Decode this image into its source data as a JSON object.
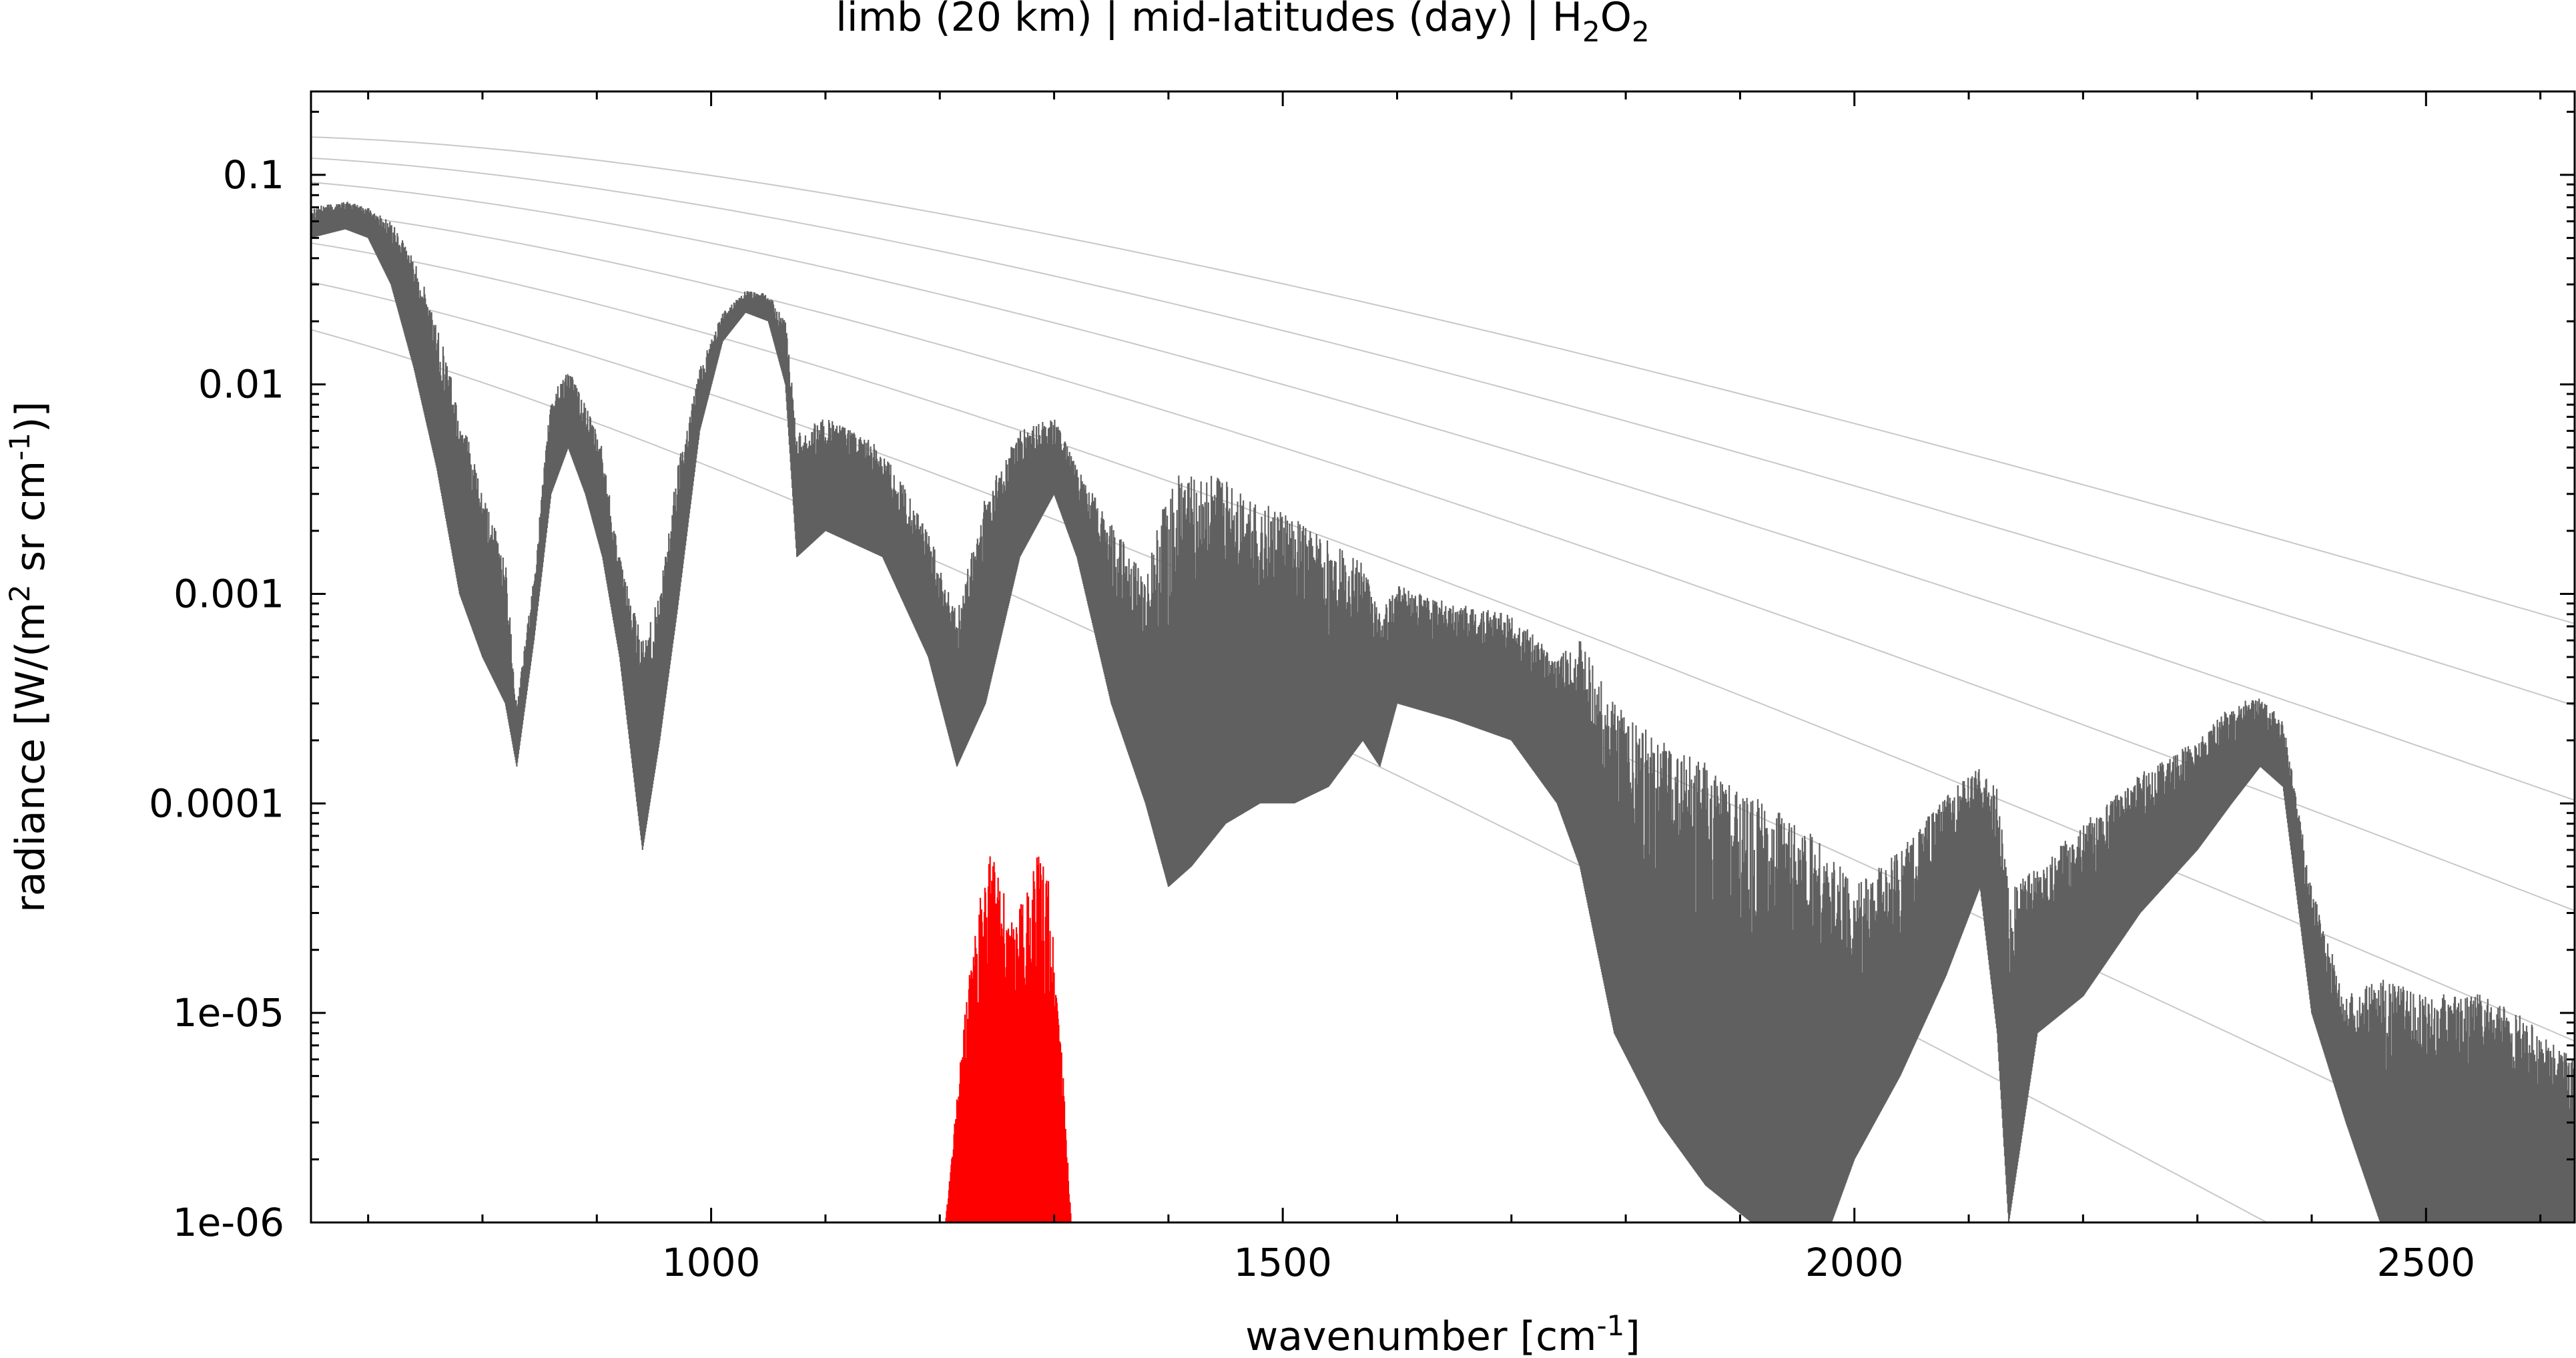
{
  "chart_data": {
    "type": "line",
    "title": {
      "prefix": "limb (20 km) | mid-latitudes (day) | H",
      "sub1": "2",
      "mid": "O",
      "sub2": "2"
    },
    "xlabel": {
      "main": "wavenumber [cm",
      "sup": "-1",
      "end": "]"
    },
    "ylabel": {
      "part1": "radiance [W/(m",
      "sup1": "2",
      "part2": " sr cm",
      "sup2": "-1",
      "part3": ")]"
    },
    "xlim": [
      650,
      2630
    ],
    "ylim": [
      1e-06,
      0.25
    ],
    "yscale": "log",
    "x_ticks": [
      {
        "value": 1000,
        "label": "1000"
      },
      {
        "value": 1500,
        "label": "1500"
      },
      {
        "value": 2000,
        "label": "2000"
      },
      {
        "value": 2500,
        "label": "2500"
      }
    ],
    "y_ticks": [
      {
        "value": 0.1,
        "label": "0.1"
      },
      {
        "value": 0.01,
        "label": "0.01"
      },
      {
        "value": 0.001,
        "label": "0.001"
      },
      {
        "value": 0.0001,
        "label": "0.0001"
      },
      {
        "value": 1e-05,
        "label": "1e-05"
      },
      {
        "value": 1e-06,
        "label": "1e-06"
      }
    ],
    "legend": "none",
    "grid": false,
    "series": [
      {
        "role": "total limb radiance (dark gray envelope)",
        "color": "#606060",
        "x": [
          650,
          680,
          700,
          720,
          740,
          760,
          780,
          800,
          820,
          830,
          845,
          860,
          875,
          890,
          905,
          920,
          940,
          955,
          970,
          990,
          1010,
          1030,
          1050,
          1065,
          1075,
          1100,
          1150,
          1190,
          1215,
          1240,
          1270,
          1300,
          1320,
          1350,
          1380,
          1400,
          1420,
          1450,
          1480,
          1510,
          1540,
          1570,
          1585,
          1600,
          1650,
          1700,
          1740,
          1760,
          1790,
          1830,
          1870,
          1910,
          1950,
          1980,
          2000,
          2040,
          2080,
          2110,
          2125,
          2135,
          2160,
          2200,
          2250,
          2300,
          2330,
          2355,
          2375,
          2400,
          2430,
          2460,
          2500,
          2540,
          2580,
          2630
        ],
        "upper": [
          0.07,
          0.075,
          0.07,
          0.06,
          0.04,
          0.02,
          0.008,
          0.003,
          0.0015,
          0.0003,
          0.0012,
          0.009,
          0.012,
          0.008,
          0.005,
          0.0015,
          0.0006,
          0.001,
          0.004,
          0.012,
          0.022,
          0.028,
          0.027,
          0.02,
          0.006,
          0.007,
          0.005,
          0.002,
          0.0008,
          0.003,
          0.006,
          0.007,
          0.004,
          0.0022,
          0.0012,
          0.0035,
          0.004,
          0.0035,
          0.0028,
          0.0023,
          0.0018,
          0.0014,
          0.0008,
          0.0011,
          0.0009,
          0.0008,
          0.0005,
          0.0006,
          0.0003,
          0.0002,
          0.00016,
          0.00011,
          8e-05,
          6e-05,
          4e-05,
          6e-05,
          0.00011,
          0.00015,
          0.00012,
          4e-05,
          5e-05,
          8e-05,
          0.00014,
          0.0002,
          0.0003,
          0.00032,
          0.00025,
          4e-05,
          1.2e-05,
          1.5e-05,
          1.2e-05,
          1.3e-05,
          1e-05,
          6e-06
        ],
        "lower": [
          0.05,
          0.055,
          0.05,
          0.03,
          0.012,
          0.004,
          0.001,
          0.0005,
          0.0003,
          0.00015,
          0.0006,
          0.003,
          0.005,
          0.003,
          0.0015,
          0.0005,
          6e-05,
          0.0002,
          0.0008,
          0.006,
          0.016,
          0.022,
          0.02,
          0.01,
          0.0015,
          0.002,
          0.0015,
          0.0005,
          0.00015,
          0.0003,
          0.0015,
          0.003,
          0.0015,
          0.0003,
          0.0001,
          4e-05,
          5e-05,
          8e-05,
          0.0001,
          0.0001,
          0.00012,
          0.0002,
          0.00015,
          0.0003,
          0.00025,
          0.0002,
          0.0001,
          5e-05,
          8e-06,
          3e-06,
          1.5e-06,
          1e-06,
          1e-06,
          1e-06,
          2e-06,
          5e-06,
          1.5e-05,
          4e-05,
          8e-06,
          1e-06,
          8e-06,
          1.2e-05,
          3e-05,
          6e-05,
          0.0001,
          0.00015,
          0.00012,
          1e-05,
          3e-06,
          1e-06,
          1e-06,
          1e-06,
          1e-06,
          1e-06
        ]
      },
      {
        "role": "H2O2 contribution (red)",
        "color": "#ff0000",
        "x": [
          1205,
          1215,
          1225,
          1235,
          1245,
          1255,
          1265,
          1275,
          1285,
          1295,
          1305,
          1315
        ],
        "upper": [
          1e-06,
          4e-06,
          1.5e-05,
          3.5e-05,
          6e-05,
          4e-05,
          2.5e-05,
          4e-05,
          6e-05,
          4.5e-05,
          1e-05,
          1e-06
        ]
      }
    ],
    "planck_reference_curves": {
      "color": "#c8c8c8",
      "temperatures_K": [
        180,
        200,
        220,
        240,
        260,
        280,
        300
      ]
    }
  }
}
